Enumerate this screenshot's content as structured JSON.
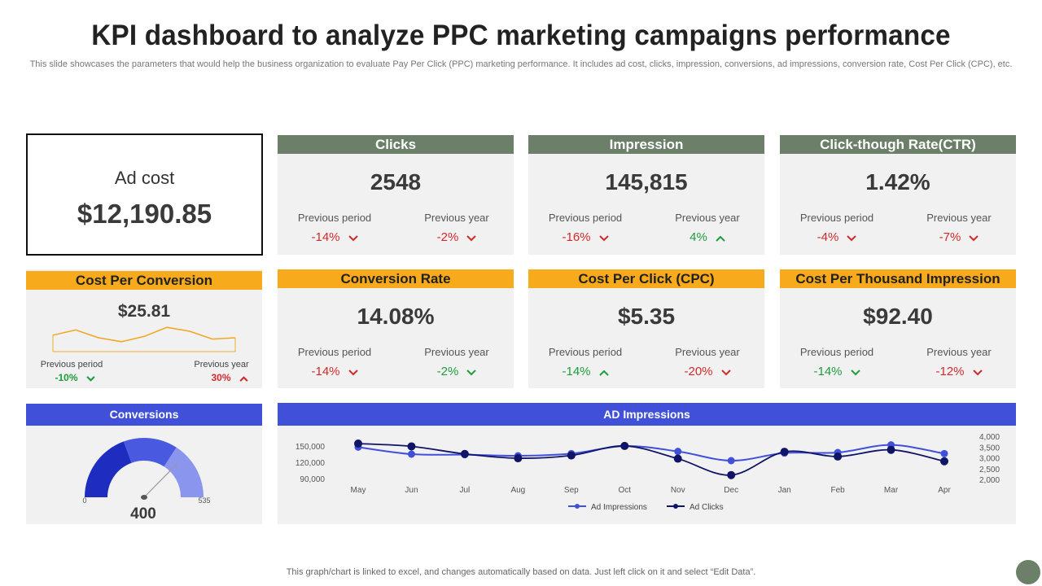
{
  "title": "KPI dashboard to analyze PPC marketing campaigns performance",
  "subtitle": "This slide showcases the parameters that would help the business organization to evaluate Pay Per Click (PPC) marketing performance. It includes ad cost, clicks, impression, conversions, ad impressions, conversion rate, Cost Per Click (CPC), etc.",
  "ad_cost": {
    "label": "Ad cost",
    "value": "$12,190.85"
  },
  "labels": {
    "prev_period": "Previous period",
    "prev_year": "Previous year"
  },
  "kpis": {
    "clicks": {
      "title": "Clicks",
      "value": "2548",
      "prev_period": "-14%",
      "prev_year": "-2%"
    },
    "impression": {
      "title": "Impression",
      "value": "145,815",
      "prev_period": "-16%",
      "prev_year": "4%"
    },
    "ctr": {
      "title": "Click-though Rate(CTR)",
      "value": "1.42%",
      "prev_period": "-4%",
      "prev_year": "-7%"
    },
    "cost_per_conversion": {
      "title": "Cost Per Conversion",
      "value": "$25.81",
      "prev_period": "-10%",
      "prev_year": "30%"
    },
    "conversion_rate": {
      "title": "Conversion Rate",
      "value": "14.08%",
      "prev_period": "-14%",
      "prev_year": "-2%"
    },
    "cpc": {
      "title": "Cost Per Click (CPC)",
      "value": "$5.35",
      "prev_period": "-14%",
      "prev_year": "-20%"
    },
    "cpm": {
      "title": "Cost Per Thousand Impression",
      "value": "$92.40",
      "prev_period": "-14%",
      "prev_year": "-12%"
    }
  },
  "conversions": {
    "title": "Conversions",
    "value": "400",
    "min": "0",
    "max": "535"
  },
  "colors": {
    "red": "#d12a2a",
    "green": "#1e9d3c",
    "gauge1": "#1e2dc0",
    "gauge2": "#4a5ae0",
    "gauge3": "#8a95ee"
  },
  "footer": "This graph/chart is linked to excel,  and changes automatically based on data. Just left click on it and select “Edit Data”.",
  "chart_data": [
    {
      "type": "line",
      "title": "AD Impressions",
      "categories": [
        "May",
        "Jun",
        "Jul",
        "Aug",
        "Sep",
        "Oct",
        "Nov",
        "Dec",
        "Jan",
        "Feb",
        "Mar",
        "Apr"
      ],
      "series": [
        {
          "name": "Ad Impressions",
          "axis": "left",
          "color": "#4150d9",
          "values": [
            148000,
            135000,
            134000,
            132000,
            136000,
            150000,
            140000,
            123000,
            137000,
            138000,
            152000,
            136000
          ]
        },
        {
          "name": "Ad Clicks",
          "axis": "right",
          "color": "#0f1466",
          "values": [
            3660,
            3530,
            3180,
            2980,
            3110,
            3550,
            2960,
            2200,
            3280,
            3060,
            3370,
            2840
          ]
        }
      ],
      "left_ticks": [
        "150,000",
        "120,000",
        "90,000"
      ],
      "left_tick_values": [
        150000,
        120000,
        90000
      ],
      "right_ticks": [
        "4,000",
        "3,500",
        "3,000",
        "2,500",
        "2,000"
      ],
      "right_tick_values": [
        4000,
        3500,
        3000,
        2500,
        2000
      ],
      "ylim_left": [
        90000,
        150000
      ],
      "ylim_right": [
        2000,
        4000
      ],
      "legend": "bottom"
    },
    {
      "type": "line",
      "title": "Cost Per Conversion trend",
      "values": [
        22,
        26,
        20,
        17,
        21,
        28,
        25,
        19,
        20
      ],
      "ylim": [
        10,
        30
      ]
    }
  ]
}
